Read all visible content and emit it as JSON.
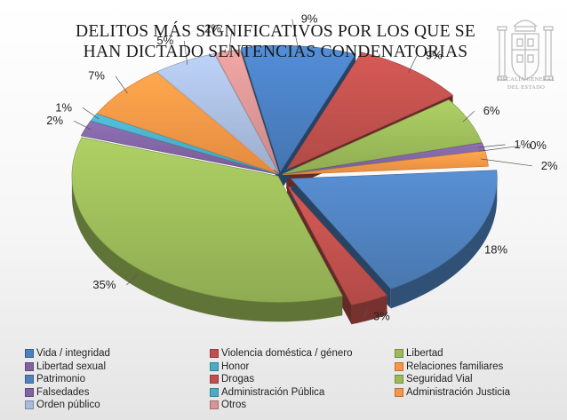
{
  "title_line1": "DELITOS MÁS SIGNIFICATIVOS POR LOS QUE SE",
  "title_line2": "HAN DICTADO SENTENCIAS CONDENATORIAS",
  "emblem_text_1": "FISCALÍA GENERAL",
  "emblem_text_2": "DEL ESTADO",
  "chart_data": {
    "type": "pie",
    "title": "DELITOS MÁS SIGNIFICATIVOS POR LOS QUE SE HAN DICTADO SENTENCIAS CONDENATORIAS",
    "legend_position": "bottom",
    "series": [
      {
        "category": "Vida / integridad",
        "value": 9,
        "label": "9%",
        "color": "#4a7fc1"
      },
      {
        "category": "Violencia doméstica / género",
        "value": 9,
        "label": "9%",
        "color": "#c0504d"
      },
      {
        "category": "Libertad",
        "value": 6,
        "label": "6%",
        "color": "#9bbb59"
      },
      {
        "category": "Libertad sexual",
        "value": 1,
        "label": "1%",
        "color": "#8064a2"
      },
      {
        "category": "Honor",
        "value": 0,
        "label": "0%",
        "color": "#4bacc6"
      },
      {
        "category": "Relaciones familiares",
        "value": 2,
        "label": "2%",
        "color": "#f79646"
      },
      {
        "category": "Patrimonio",
        "value": 18,
        "label": "18%",
        "color": "#4f81bd"
      },
      {
        "category": "Drogas",
        "value": 3,
        "label": "3%",
        "color": "#c0504d"
      },
      {
        "category": "Seguridad Vial",
        "value": 35,
        "label": "35%",
        "color": "#9bbb59"
      },
      {
        "category": "Falsedades",
        "value": 2,
        "label": "2%",
        "color": "#8064a2"
      },
      {
        "category": "Administración Pública",
        "value": 1,
        "label": "1%",
        "color": "#4bacc6"
      },
      {
        "category": "Administración Justicia",
        "value": 7,
        "label": "7%",
        "color": "#f79646"
      },
      {
        "category": "Orden público",
        "value": 5,
        "label": "5%",
        "color": "#a9bcde"
      },
      {
        "category": "Otros",
        "value": 2,
        "label": "2%",
        "color": "#d99594"
      }
    ]
  }
}
